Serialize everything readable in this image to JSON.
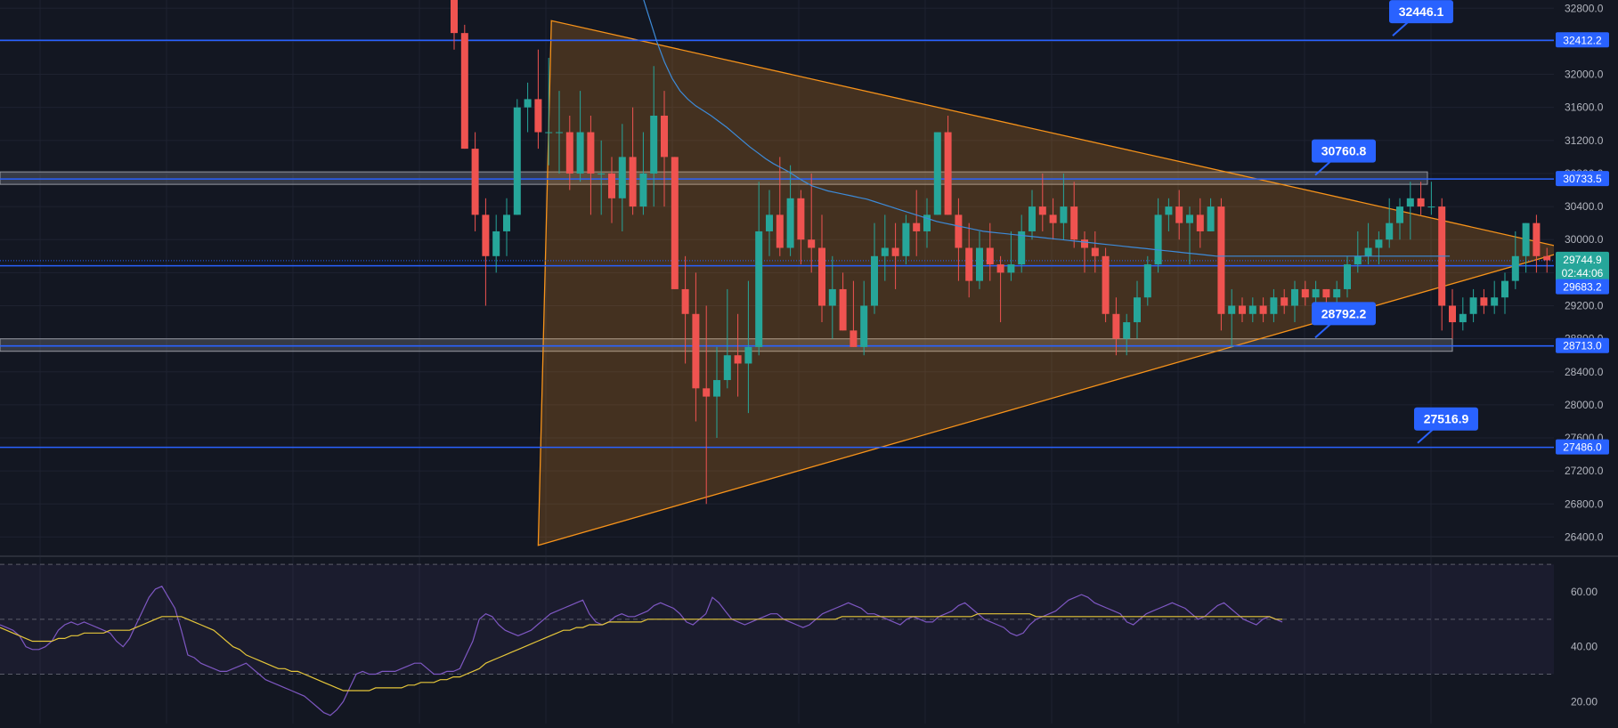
{
  "theme": {
    "background": "#131722",
    "grid": "#1e2230",
    "bull": "#26a69a",
    "bear": "#ef5350",
    "level_line": "#2962ff",
    "triangle_stroke": "#f7931a",
    "triangle_fill": "#f7931a",
    "ma_line": "#3d8bd9",
    "rsi_line": "#7e57c2",
    "rsi_ma": "#e5c63a",
    "axis_text": "#b2b5be",
    "label_bg": "#2962ff",
    "price_tag": "#26a69a"
  },
  "chart_data": [
    {
      "type": "candlestick",
      "title": "",
      "ylim": [
        26200,
        32900
      ],
      "y_ticks": [
        "32800.0",
        "32400.0",
        "32000.0",
        "31600.0",
        "31200.0",
        "30800.0",
        "30400.0",
        "30000.0",
        "29600.0",
        "29200.0",
        "28800.0",
        "28400.0",
        "28000.0",
        "27600.0",
        "27200.0",
        "26800.0",
        "26400.0"
      ],
      "price_levels": [
        {
          "value": 32412.2,
          "label": "32412.2",
          "callout": "32446.1",
          "callout_value": 32446.1,
          "zone": false
        },
        {
          "value": 30733.5,
          "label": "30733.5",
          "callout": "30760.8",
          "callout_value": 30760.8,
          "zone": true
        },
        {
          "value": 28713.0,
          "label": "28713.0",
          "callout": "28792.2",
          "callout_value": 28792.2,
          "zone": true
        },
        {
          "value": 27486.0,
          "label": "27486.0",
          "callout": "27516.9",
          "callout_value": 27516.9,
          "zone": false
        }
      ],
      "current_price": {
        "value": 29744.9,
        "label": "29744.9",
        "countdown": "02:44:06"
      },
      "secondary_price": {
        "value": 29683.2,
        "label": "29683.2"
      },
      "triangle": {
        "top": {
          "bar": 9,
          "price": 32650
        },
        "bottom": {
          "bar": 8,
          "price": 26300
        },
        "apex": {
          "bar": 104,
          "price": 29880
        }
      },
      "candles": [
        [
          32950,
          33200,
          32300,
          32500
        ],
        [
          32500,
          32600,
          31100,
          31100
        ],
        [
          31100,
          31300,
          30100,
          30300
        ],
        [
          30300,
          30500,
          29200,
          29800
        ],
        [
          29800,
          30300,
          29600,
          30100
        ],
        [
          30100,
          30500,
          29800,
          30300
        ],
        [
          30300,
          31700,
          30300,
          31600
        ],
        [
          31600,
          31900,
          31300,
          31700
        ],
        [
          31700,
          32300,
          31100,
          31300
        ],
        [
          31300,
          32200,
          30900,
          31300
        ],
        [
          31300,
          31800,
          30800,
          31300
        ],
        [
          31300,
          31500,
          30600,
          30800
        ],
        [
          30800,
          31800,
          30700,
          31300
        ],
        [
          31300,
          31500,
          30300,
          30800
        ],
        [
          30800,
          31200,
          30300,
          30800
        ],
        [
          30800,
          31000,
          30200,
          30500
        ],
        [
          30500,
          31400,
          30100,
          31000
        ],
        [
          31000,
          31600,
          30300,
          30400
        ],
        [
          30400,
          31300,
          30300,
          30800
        ],
        [
          30800,
          32100,
          30400,
          31500
        ],
        [
          31500,
          31800,
          30400,
          31000
        ],
        [
          31000,
          31000,
          29400,
          29400
        ],
        [
          29400,
          29800,
          28500,
          29100
        ],
        [
          29100,
          29600,
          27800,
          28200
        ],
        [
          28200,
          29200,
          26800,
          28100
        ],
        [
          28100,
          28700,
          27600,
          28300
        ],
        [
          28300,
          29400,
          28200,
          28600
        ],
        [
          28600,
          29100,
          28100,
          28500
        ],
        [
          28500,
          29500,
          27900,
          28700
        ],
        [
          28700,
          30700,
          28600,
          30100
        ],
        [
          30100,
          30600,
          29800,
          30300
        ],
        [
          30300,
          31000,
          29800,
          29900
        ],
        [
          29900,
          30900,
          29800,
          30500
        ],
        [
          30500,
          30600,
          29700,
          30000
        ],
        [
          30000,
          30800,
          29600,
          29900
        ],
        [
          29900,
          30300,
          29000,
          29200
        ],
        [
          29200,
          29800,
          28800,
          29400
        ],
        [
          29400,
          29600,
          28900,
          28900
        ],
        [
          28900,
          29500,
          28700,
          28700
        ],
        [
          28700,
          29500,
          28600,
          29200
        ],
        [
          29200,
          30200,
          29100,
          29800
        ],
        [
          29800,
          30300,
          29500,
          29900
        ],
        [
          29900,
          30200,
          29400,
          29800
        ],
        [
          29800,
          30300,
          29700,
          30200
        ],
        [
          30200,
          30600,
          29800,
          30100
        ],
        [
          30100,
          30500,
          29900,
          30300
        ],
        [
          30300,
          31300,
          30300,
          31300
        ],
        [
          31300,
          31500,
          30300,
          30300
        ],
        [
          30300,
          30500,
          29500,
          29900
        ],
        [
          29900,
          30200,
          29300,
          29500
        ],
        [
          29500,
          30100,
          29400,
          29900
        ],
        [
          29900,
          30200,
          29500,
          29700
        ],
        [
          29700,
          29800,
          29000,
          29600
        ],
        [
          29600,
          30100,
          29500,
          29700
        ],
        [
          29700,
          30300,
          29600,
          30100
        ],
        [
          30100,
          30600,
          30000,
          30400
        ],
        [
          30400,
          30800,
          30100,
          30300
        ],
        [
          30300,
          30500,
          30000,
          30200
        ],
        [
          30200,
          30800,
          30000,
          30400
        ],
        [
          30400,
          30700,
          29900,
          30000
        ],
        [
          30000,
          30100,
          29600,
          29900
        ],
        [
          29900,
          30100,
          29600,
          29800
        ],
        [
          29800,
          29900,
          29000,
          29100
        ],
        [
          29100,
          29300,
          28600,
          28800
        ],
        [
          28800,
          29100,
          28600,
          29000
        ],
        [
          29000,
          29500,
          28800,
          29300
        ],
        [
          29300,
          29800,
          29200,
          29700
        ],
        [
          29700,
          30500,
          29600,
          30300
        ],
        [
          30300,
          30500,
          30100,
          30400
        ],
        [
          30400,
          30600,
          30000,
          30200
        ],
        [
          30200,
          30400,
          29700,
          30300
        ],
        [
          30300,
          30500,
          29900,
          30100
        ],
        [
          30100,
          30500,
          30100,
          30400
        ],
        [
          30400,
          30500,
          28900,
          29100
        ],
        [
          29100,
          29400,
          28700,
          29200
        ],
        [
          29200,
          29300,
          29000,
          29100
        ],
        [
          29100,
          29300,
          29000,
          29200
        ],
        [
          29200,
          29300,
          29000,
          29100
        ],
        [
          29100,
          29400,
          29000,
          29300
        ],
        [
          29300,
          29400,
          29100,
          29200
        ],
        [
          29200,
          29500,
          29000,
          29400
        ],
        [
          29400,
          29500,
          29200,
          29300
        ],
        [
          29300,
          29500,
          29200,
          29400
        ],
        [
          29400,
          29400,
          29100,
          29300
        ],
        [
          29300,
          29500,
          29200,
          29400
        ],
        [
          29400,
          29800,
          29300,
          29700
        ],
        [
          29700,
          30100,
          29600,
          29800
        ],
        [
          29800,
          30200,
          29700,
          29900
        ],
        [
          29900,
          30100,
          29700,
          30000
        ],
        [
          30000,
          30500,
          29900,
          30200
        ],
        [
          30200,
          30500,
          30000,
          30400
        ],
        [
          30400,
          30700,
          30000,
          30500
        ],
        [
          30500,
          30700,
          30300,
          30400
        ],
        [
          30400,
          30700,
          30300,
          30400
        ],
        [
          30400,
          30500,
          28900,
          29200
        ],
        [
          29200,
          29400,
          28800,
          29000
        ],
        [
          29000,
          29300,
          28900,
          29100
        ],
        [
          29100,
          29400,
          29000,
          29300
        ],
        [
          29300,
          29400,
          29100,
          29200
        ],
        [
          29200,
          29500,
          29100,
          29300
        ],
        [
          29300,
          29600,
          29100,
          29500
        ],
        [
          29500,
          30100,
          29400,
          29800
        ],
        [
          29800,
          30200,
          29600,
          30200
        ],
        [
          30200,
          30300,
          29600,
          29800
        ],
        [
          29800,
          29900,
          29600,
          29750
        ]
      ],
      "ma": [
        33000,
        32700,
        32400,
        32150,
        31950,
        31800,
        31700,
        31620,
        31560,
        31500,
        31430,
        31360,
        31280,
        31200,
        31120,
        31050,
        30980,
        30920,
        30870,
        30820,
        30760,
        30700,
        30650,
        30620,
        30590,
        30570,
        30550,
        30530,
        30510,
        30490,
        30460,
        30430,
        30400,
        30370,
        30340,
        30310,
        30280,
        30250,
        30220,
        30200,
        30180,
        30160,
        30140,
        30120,
        30100,
        30090,
        30080,
        30070,
        30060,
        30050,
        30040,
        30030,
        30020,
        30010,
        30000,
        29990,
        29980,
        29970,
        29960,
        29950,
        29940,
        29930,
        29920,
        29910,
        29900,
        29890,
        29880,
        29870,
        29860,
        29850,
        29840,
        29830,
        29820,
        29810,
        29800,
        29800,
        29800,
        29800,
        29800,
        29800,
        29800,
        29800,
        29800,
        29800,
        29800,
        29800,
        29800,
        29800,
        29800,
        29800,
        29800,
        29800,
        29800,
        29800,
        29800,
        29800,
        29800,
        29800,
        29800,
        29800,
        29800,
        29800,
        29800,
        29800,
        29800
      ]
    },
    {
      "type": "line",
      "title": "",
      "ylim": [
        12,
        72
      ],
      "y_ticks": [
        "60.00",
        "40.00",
        "20.00"
      ],
      "bands": [
        70,
        50,
        30
      ],
      "rsi": [
        48,
        47,
        46,
        44,
        40,
        39,
        39,
        40,
        42,
        46,
        48,
        49,
        48,
        49,
        48,
        47,
        46,
        45,
        42,
        40,
        43,
        48,
        53,
        58,
        61,
        62,
        58,
        54,
        46,
        37,
        36,
        34,
        33,
        32,
        31,
        31,
        32,
        33,
        34,
        32,
        30,
        28,
        27,
        26,
        25,
        24,
        23,
        22,
        20,
        18,
        16,
        15,
        17,
        20,
        25,
        30,
        31,
        30,
        30,
        31,
        31,
        31,
        32,
        33,
        34,
        34,
        32,
        30,
        30,
        31,
        31,
        32,
        37,
        42,
        50,
        52,
        51,
        48,
        46,
        45,
        44,
        45,
        46,
        48,
        50,
        52,
        53,
        54,
        55,
        56,
        57,
        52,
        49,
        48,
        49,
        51,
        52,
        51,
        51,
        52,
        53,
        55,
        56,
        55,
        54,
        52,
        49,
        48,
        50,
        52,
        58,
        56,
        53,
        50,
        49,
        48,
        49,
        50,
        51,
        52,
        52,
        50,
        49,
        48,
        47,
        48,
        50,
        52,
        53,
        54,
        55,
        56,
        55,
        54,
        52,
        52,
        51,
        50,
        49,
        48,
        50,
        51,
        50,
        49,
        49,
        51,
        52,
        53,
        55,
        56,
        54,
        52,
        50,
        49,
        48,
        47,
        45,
        44,
        45,
        48,
        50,
        51,
        52,
        53,
        55,
        57,
        58,
        59,
        58,
        56,
        55,
        54,
        53,
        52,
        49,
        48,
        50,
        52,
        53,
        54,
        55,
        56,
        55,
        54,
        52,
        50,
        51,
        53,
        55,
        56,
        54,
        52,
        50,
        49,
        48,
        50,
        51,
        50,
        49
      ],
      "rsi_ma": [
        47,
        46,
        45,
        44,
        43,
        42,
        42,
        42,
        42,
        43,
        43,
        44,
        44,
        45,
        45,
        45,
        45,
        46,
        46,
        46,
        46,
        47,
        48,
        49,
        50,
        51,
        51,
        51,
        51,
        50,
        49,
        48,
        47,
        46,
        44,
        42,
        40,
        39,
        37,
        36,
        35,
        34,
        33,
        32,
        32,
        31,
        31,
        30,
        29,
        28,
        27,
        26,
        25,
        24,
        24,
        24,
        24,
        24,
        25,
        25,
        25,
        25,
        25,
        26,
        26,
        27,
        27,
        27,
        28,
        28,
        29,
        29,
        30,
        31,
        32,
        34,
        35,
        36,
        37,
        38,
        39,
        40,
        41,
        42,
        43,
        44,
        45,
        46,
        46,
        47,
        47,
        48,
        48,
        48,
        49,
        49,
        49,
        49,
        49,
        49,
        50,
        50,
        50,
        50,
        50,
        50,
        50,
        50,
        50,
        50,
        50,
        50,
        50,
        50,
        50,
        50,
        50,
        50,
        50,
        50,
        50,
        50,
        50,
        50,
        50,
        50,
        50,
        50,
        50,
        50,
        51,
        51,
        51,
        51,
        51,
        51,
        51,
        51,
        51,
        51,
        51,
        51,
        51,
        51,
        51,
        51,
        51,
        51,
        51,
        51,
        51,
        52,
        52,
        52,
        52,
        52,
        52,
        52,
        52,
        52,
        51,
        51,
        51,
        51,
        51,
        51,
        51,
        51,
        51,
        51,
        51,
        51,
        51,
        51,
        51,
        51,
        51,
        51,
        51,
        51,
        51,
        51,
        51,
        51,
        51,
        51,
        51,
        51,
        51,
        51,
        51,
        51,
        51,
        51,
        51,
        51,
        51,
        50,
        50
      ]
    }
  ]
}
